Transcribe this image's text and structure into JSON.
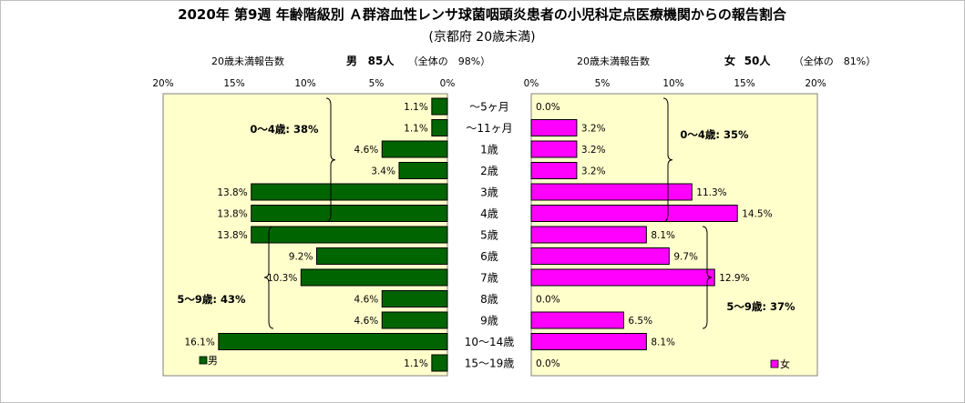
{
  "title": "2020年 第9週 年齢階級別 Ａ群溶血性レンサ球菌咽頭炎患者の小児科定点医療機関からの報告割合",
  "subtitle": "(京都府 20歳未満)",
  "colors": {
    "male": "#006400",
    "female": "#ff00ff",
    "plot_bg": "#ffffcc",
    "bar_border": "#000000"
  },
  "chart_data": {
    "type": "bar",
    "orientation": "horizontal-butterfly",
    "categories": [
      "～5ヶ月",
      "～11ヶ月",
      "1歳",
      "2歳",
      "3歳",
      "4歳",
      "5歳",
      "6歳",
      "7歳",
      "8歳",
      "9歳",
      "10～14歳",
      "15～19歳"
    ],
    "xlim": [
      0,
      20
    ],
    "ticks": [
      "0%",
      "5%",
      "10%",
      "15%",
      "20%"
    ],
    "grid": false,
    "left_panel": {
      "axis_caption": "20歳未満報告数",
      "header_sex": "男",
      "header_count": "85人",
      "header_note": "（全体の　98%）",
      "legend_label": "男",
      "values": [
        1.1,
        1.1,
        4.6,
        3.4,
        13.8,
        13.8,
        13.8,
        9.2,
        10.3,
        4.6,
        4.6,
        16.1,
        1.1
      ],
      "labels": [
        "1.1%",
        "1.1%",
        "4.6%",
        "3.4%",
        "13.8%",
        "13.8%",
        "13.8%",
        "9.2%",
        "10.3%",
        "4.6%",
        "4.6%",
        "16.1%",
        "1.1%"
      ],
      "annotations": [
        {
          "text": "0～4歳: 38%",
          "from": 0,
          "to": 5
        },
        {
          "text": "5～9歳: 43%",
          "from": 6,
          "to": 10
        }
      ]
    },
    "right_panel": {
      "axis_caption": "20歳未満報告数",
      "header_sex": "女",
      "header_count": "50人",
      "header_note": "（全体の　81%）",
      "legend_label": "女",
      "values": [
        0.0,
        3.2,
        3.2,
        3.2,
        11.3,
        14.5,
        8.1,
        9.7,
        12.9,
        0.0,
        6.5,
        8.1,
        0.0
      ],
      "labels": [
        "0.0%",
        "3.2%",
        "3.2%",
        "3.2%",
        "11.3%",
        "14.5%",
        "8.1%",
        "9.7%",
        "12.9%",
        "0.0%",
        "6.5%",
        "8.1%",
        "0.0%"
      ],
      "annotations": [
        {
          "text": "0～4歳: 35%",
          "from": 0,
          "to": 5
        },
        {
          "text": "5～9歳: 37%",
          "from": 6,
          "to": 10
        }
      ]
    }
  }
}
